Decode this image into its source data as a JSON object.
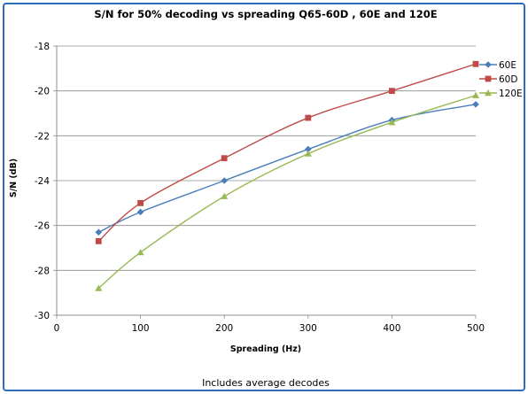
{
  "chart_data": {
    "type": "line",
    "title": "S/N for 50% decoding vs spreading Q65-60D , 60E and 120E",
    "xlabel": "Spreading (Hz)",
    "ylabel": "S/N (dB)",
    "xlim": [
      0,
      500
    ],
    "ylim": [
      -30,
      -18
    ],
    "xticks": [
      0,
      100,
      200,
      300,
      400,
      500
    ],
    "yticks": [
      -30,
      -28,
      -26,
      -24,
      -22,
      -20,
      -18
    ],
    "grid": "horizontal",
    "legend_position": "right",
    "note": "Includes average decodes",
    "series": [
      {
        "name": "60E",
        "color": "#4a7ebb",
        "marker": "diamond",
        "x": [
          50,
          100,
          200,
          300,
          400,
          500
        ],
        "y": [
          -26.3,
          -25.4,
          -24.0,
          -22.6,
          -21.3,
          -20.6
        ]
      },
      {
        "name": "60D",
        "color": "#be4b48",
        "marker": "square",
        "x": [
          50,
          100,
          200,
          300,
          400,
          500
        ],
        "y": [
          -26.7,
          -25.0,
          -23.0,
          -21.2,
          -20.0,
          -18.8
        ]
      },
      {
        "name": "120E",
        "color": "#98b954",
        "marker": "triangle",
        "x": [
          50,
          100,
          200,
          300,
          400,
          500
        ],
        "y": [
          -28.8,
          -27.2,
          -24.7,
          -22.8,
          -21.4,
          -20.2
        ]
      }
    ]
  }
}
